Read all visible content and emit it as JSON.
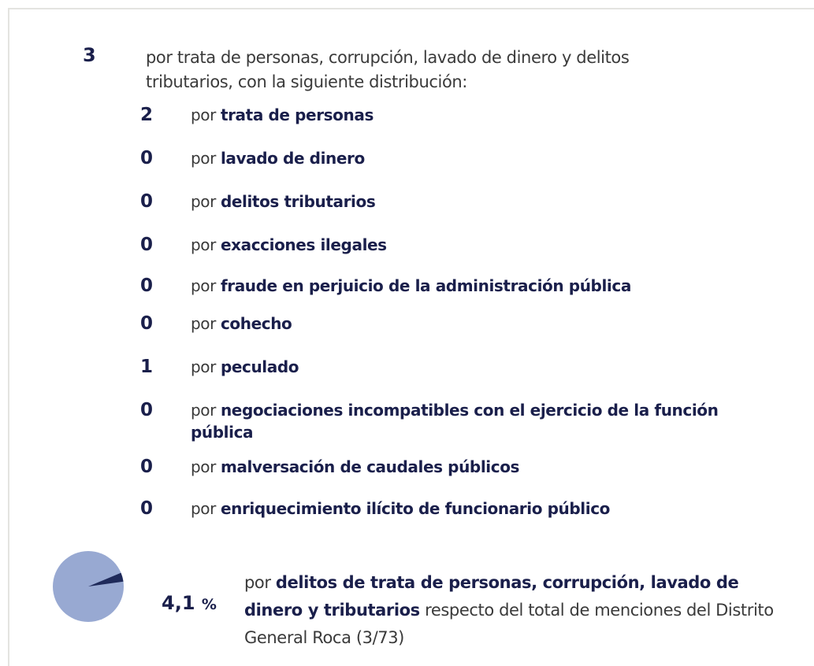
{
  "header": {
    "count": 3,
    "text": "por trata de personas, corrupción, lavado de dinero y delitos tributarios, con la siguiente distribución:"
  },
  "items": [
    {
      "count": 2,
      "prefix": "por",
      "label": "trata de personas"
    },
    {
      "count": 0,
      "prefix": "por",
      "label": "lavado de dinero"
    },
    {
      "count": 0,
      "prefix": "por",
      "label": "delitos tributarios"
    },
    {
      "count": 0,
      "prefix": "por",
      "label": "exacciones ilegales"
    },
    {
      "count": 0,
      "prefix": "por",
      "label": "fraude en perjuicio de la administración pública"
    },
    {
      "count": 0,
      "prefix": "por",
      "label": "cohecho"
    },
    {
      "count": 1,
      "prefix": "por",
      "label": "peculado"
    },
    {
      "count": 0,
      "prefix": "por",
      "label": "negociaciones incompatibles con el ejercicio de la función pública"
    },
    {
      "count": 0,
      "prefix": "por",
      "label": "malversación de caudales públicos"
    },
    {
      "count": 0,
      "prefix": "por",
      "label": "enriquecimiento ilícito de funcionario público"
    }
  ],
  "footer": {
    "percent": {
      "value": 4.1,
      "label": "4,1"
    },
    "unit": "%",
    "prefix": "por",
    "bold": "delitos de trata de personas, corrupción, lavado de dinero y tributarios",
    "text": "respecto del total de menciones del Distrito General Roca (3/73)",
    "colors": {
      "slice": "#1f2a5a",
      "rest": "#98a9d2"
    }
  }
}
